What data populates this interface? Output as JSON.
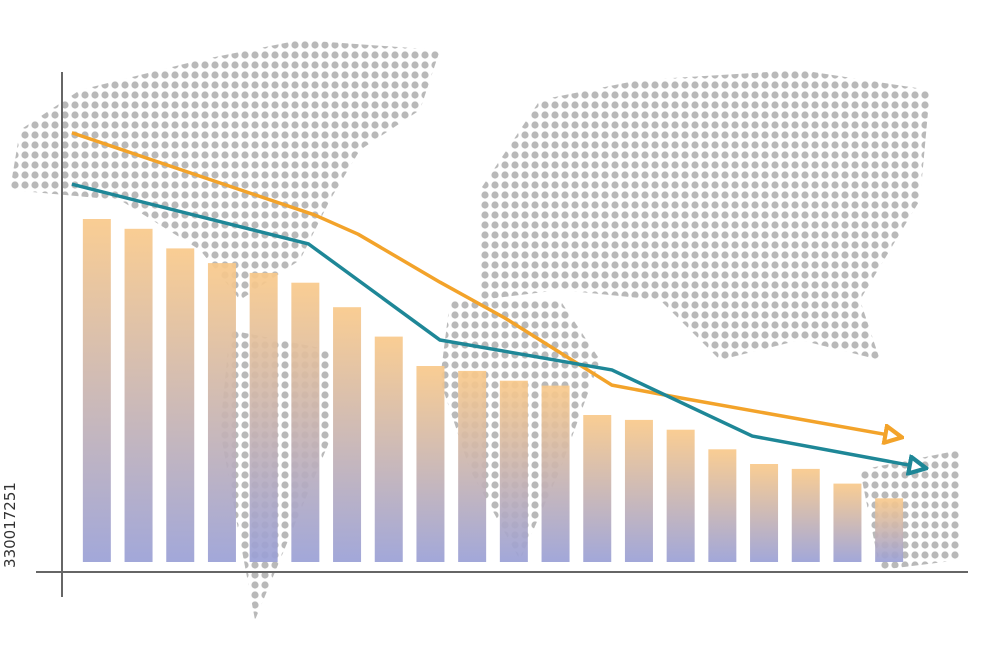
{
  "watermark": "330017251",
  "chart_data": {
    "type": "bar",
    "categories": [
      null,
      null,
      null,
      null,
      null,
      null,
      null,
      null,
      null,
      null,
      null,
      null,
      null,
      null,
      null,
      null,
      null,
      null,
      null,
      null
    ],
    "values": [
      70,
      68,
      64,
      61,
      59,
      57,
      52,
      46,
      40,
      39,
      37,
      36,
      30,
      29,
      27,
      23,
      20,
      19,
      16,
      13
    ],
    "gradient": [
      "#f9c98a",
      "#9aa0d6"
    ],
    "ylim": [
      0,
      100
    ],
    "xlim": [
      0,
      100
    ],
    "lines": [
      {
        "color": "#f3a32a",
        "x": [
          1.1,
          28.1,
          32.9,
          42,
          49.2,
          61.1,
          68.7,
          93.1
        ],
        "values": [
          87.6,
          70.8,
          66.9,
          57.1,
          49.8,
          36.1,
          33.5,
          25.5
        ]
      },
      {
        "color": "#1e8797",
        "x": [
          1.1,
          27.4,
          42,
          61.1,
          76.7,
          95.8
        ],
        "values": [
          77.1,
          64.9,
          45.3,
          39.2,
          25.7,
          19.2
        ]
      }
    ]
  }
}
